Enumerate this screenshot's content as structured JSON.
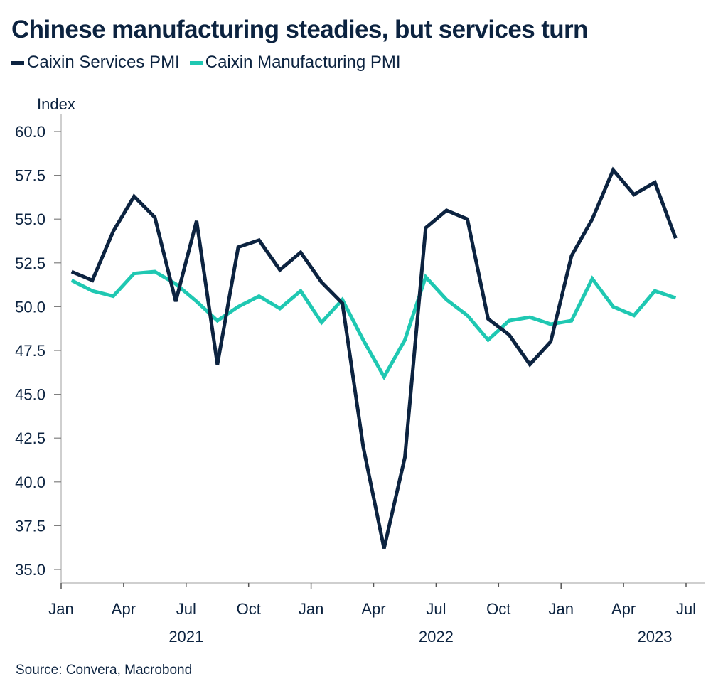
{
  "chart_data": {
    "type": "line",
    "title": "Chinese manufacturing steadies, but services turn",
    "ylabel": "Index",
    "xlabel": "",
    "ylim": [
      34.2,
      61
    ],
    "yticks": [
      "60.0",
      "57.5",
      "55.0",
      "52.5",
      "50.0",
      "47.5",
      "45.0",
      "42.5",
      "40.0",
      "37.5",
      "35.0"
    ],
    "ytick_values": [
      60.0,
      57.5,
      55.0,
      52.5,
      50.0,
      47.5,
      45.0,
      42.5,
      40.0,
      37.5,
      35.0
    ],
    "xticks": [
      {
        "label": "Jan",
        "month_index": 0,
        "major": true
      },
      {
        "label": "Apr",
        "month_index": 3,
        "major": false
      },
      {
        "label": "Jul",
        "month_index": 6,
        "major": false
      },
      {
        "label": "Oct",
        "month_index": 9,
        "major": false
      },
      {
        "label": "Jan",
        "month_index": 12,
        "major": true
      },
      {
        "label": "Apr",
        "month_index": 15,
        "major": false
      },
      {
        "label": "Jul",
        "month_index": 18,
        "major": false
      },
      {
        "label": "Oct",
        "month_index": 21,
        "major": false
      },
      {
        "label": "Jan",
        "month_index": 24,
        "major": true
      },
      {
        "label": "Apr",
        "month_index": 27,
        "major": false
      },
      {
        "label": "Jul",
        "month_index": 30,
        "major": false
      }
    ],
    "year_labels": [
      {
        "label": "2021",
        "month_index": 6
      },
      {
        "label": "2022",
        "month_index": 18
      },
      {
        "label": "2023",
        "month_index": 28.5
      }
    ],
    "x": [
      "2021-01",
      "2021-02",
      "2021-03",
      "2021-04",
      "2021-05",
      "2021-06",
      "2021-07",
      "2021-08",
      "2021-09",
      "2021-10",
      "2021-11",
      "2021-12",
      "2022-01",
      "2022-02",
      "2022-03",
      "2022-04",
      "2022-05",
      "2022-06",
      "2022-07",
      "2022-08",
      "2022-09",
      "2022-10",
      "2022-11",
      "2022-12",
      "2023-01",
      "2023-02",
      "2023-03",
      "2023-04",
      "2023-05",
      "2023-06"
    ],
    "x_range_months": [
      0,
      31.2
    ],
    "grid": false,
    "legend_position": "top-left",
    "series": [
      {
        "name": "Caixin Services PMI",
        "color": "#0c2340",
        "values": [
          52.0,
          51.5,
          54.3,
          56.3,
          55.1,
          50.3,
          54.9,
          46.7,
          53.4,
          53.8,
          52.1,
          53.1,
          51.4,
          50.2,
          42.0,
          36.2,
          41.4,
          54.5,
          55.5,
          55.0,
          49.3,
          48.4,
          46.7,
          48.0,
          52.9,
          55.0,
          57.8,
          56.4,
          57.1,
          53.9
        ]
      },
      {
        "name": "Caixin Manufacturing PMI",
        "color": "#1fc8b2",
        "values": [
          51.5,
          50.9,
          50.6,
          51.9,
          52.0,
          51.3,
          50.3,
          49.2,
          50.0,
          50.6,
          49.9,
          50.9,
          49.1,
          50.4,
          48.1,
          46.0,
          48.1,
          51.7,
          50.4,
          49.5,
          48.1,
          49.2,
          49.4,
          49.0,
          49.2,
          51.6,
          50.0,
          49.5,
          50.9,
          50.5
        ]
      }
    ],
    "source": "Source: Convera, Macrobond"
  }
}
